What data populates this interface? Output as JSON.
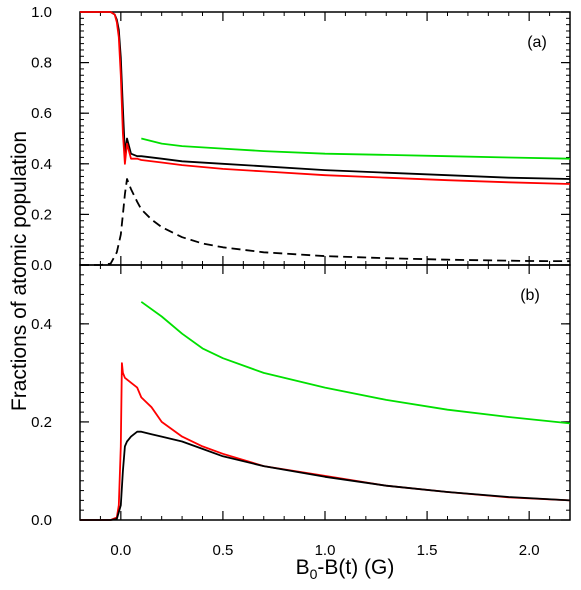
{
  "chart_data": [
    {
      "type": "line",
      "panel_label": "(a)",
      "xlim": [
        -0.2,
        2.2
      ],
      "ylim": [
        0.0,
        1.0
      ],
      "x_ticks": [
        0.0,
        0.5,
        1.0,
        1.5,
        2.0
      ],
      "y_ticks": [
        0.0,
        0.2,
        0.4,
        0.6,
        0.8,
        1.0
      ],
      "y_tick_labels": [
        "0.0",
        "0.2",
        "0.4",
        "0.6",
        "0.8",
        "1.0"
      ],
      "grid": false,
      "series": [
        {
          "color": "#000000",
          "style": "solid",
          "x": [
            -0.2,
            -0.05,
            -0.03,
            -0.02,
            -0.01,
            0.0,
            0.01,
            0.02,
            0.03,
            0.05,
            0.08,
            0.1,
            0.2,
            0.3,
            0.5,
            0.7,
            1.0,
            1.3,
            1.6,
            1.9,
            2.2
          ],
          "y": [
            1.0,
            1.0,
            0.99,
            0.97,
            0.93,
            0.82,
            0.62,
            0.44,
            0.5,
            0.44,
            0.43,
            0.43,
            0.42,
            0.41,
            0.4,
            0.39,
            0.375,
            0.365,
            0.355,
            0.345,
            0.34
          ]
        },
        {
          "color": "#ff0000",
          "style": "solid",
          "x": [
            -0.2,
            -0.05,
            -0.03,
            -0.02,
            -0.01,
            0.0,
            0.01,
            0.02,
            0.03,
            0.05,
            0.08,
            0.1,
            0.2,
            0.3,
            0.5,
            0.7,
            1.0,
            1.3,
            1.6,
            1.9,
            2.2
          ],
          "y": [
            1.0,
            1.0,
            0.99,
            0.96,
            0.9,
            0.75,
            0.52,
            0.4,
            0.48,
            0.42,
            0.42,
            0.415,
            0.405,
            0.395,
            0.38,
            0.37,
            0.355,
            0.345,
            0.335,
            0.327,
            0.32
          ]
        },
        {
          "color": "#00e000",
          "style": "solid",
          "x": [
            0.1,
            0.2,
            0.3,
            0.5,
            0.7,
            1.0,
            1.3,
            1.6,
            1.9,
            2.2
          ],
          "y": [
            0.5,
            0.48,
            0.47,
            0.46,
            0.45,
            0.44,
            0.435,
            0.43,
            0.425,
            0.42
          ]
        },
        {
          "color": "#000000",
          "style": "dashed",
          "x": [
            -0.2,
            -0.1,
            -0.05,
            -0.02,
            0.0,
            0.01,
            0.02,
            0.03,
            0.05,
            0.08,
            0.1,
            0.15,
            0.2,
            0.3,
            0.4,
            0.5,
            0.7,
            1.0,
            1.3,
            1.6,
            2.0,
            2.2
          ],
          "y": [
            0.0,
            0.0,
            0.005,
            0.05,
            0.12,
            0.2,
            0.28,
            0.34,
            0.3,
            0.25,
            0.22,
            0.18,
            0.15,
            0.11,
            0.085,
            0.07,
            0.05,
            0.035,
            0.027,
            0.021,
            0.016,
            0.015
          ]
        }
      ]
    },
    {
      "type": "line",
      "panel_label": "(b)",
      "xlim": [
        -0.2,
        2.2
      ],
      "ylim": [
        0.0,
        0.52
      ],
      "x_ticks": [
        0.0,
        0.5,
        1.0,
        1.5,
        2.0
      ],
      "x_tick_labels": [
        "0.0",
        "0.5",
        "1.0",
        "1.5",
        "2.0"
      ],
      "y_ticks": [
        0.0,
        0.2,
        0.4
      ],
      "y_tick_labels": [
        "0.0",
        "0.2",
        "0.4"
      ],
      "xlabel": "B0-B(t) (G)",
      "grid": false,
      "series": [
        {
          "color": "#00e000",
          "style": "solid",
          "x": [
            0.1,
            0.2,
            0.3,
            0.4,
            0.5,
            0.7,
            1.0,
            1.3,
            1.6,
            1.9,
            2.2
          ],
          "y": [
            0.445,
            0.415,
            0.38,
            0.35,
            0.33,
            0.3,
            0.27,
            0.245,
            0.225,
            0.21,
            0.197
          ]
        },
        {
          "color": "#ff0000",
          "style": "solid",
          "x": [
            -0.2,
            -0.05,
            -0.02,
            -0.01,
            0.0,
            0.005,
            0.01,
            0.02,
            0.05,
            0.08,
            0.1,
            0.15,
            0.2,
            0.3,
            0.4,
            0.5,
            0.7,
            1.0,
            1.3,
            1.6,
            1.9,
            2.2
          ],
          "y": [
            0.0,
            0.0,
            0.005,
            0.03,
            0.15,
            0.32,
            0.3,
            0.29,
            0.28,
            0.27,
            0.25,
            0.23,
            0.2,
            0.17,
            0.15,
            0.135,
            0.11,
            0.09,
            0.07,
            0.057,
            0.046,
            0.04
          ]
        },
        {
          "color": "#000000",
          "style": "solid",
          "x": [
            -0.2,
            -0.05,
            -0.02,
            0.0,
            0.01,
            0.02,
            0.03,
            0.05,
            0.08,
            0.1,
            0.15,
            0.2,
            0.3,
            0.4,
            0.5,
            0.7,
            1.0,
            1.3,
            1.6,
            1.9,
            2.2
          ],
          "y": [
            0.0,
            0.0,
            0.002,
            0.03,
            0.1,
            0.15,
            0.16,
            0.17,
            0.18,
            0.18,
            0.175,
            0.17,
            0.16,
            0.145,
            0.13,
            0.11,
            0.088,
            0.07,
            0.057,
            0.047,
            0.04
          ]
        }
      ]
    }
  ],
  "shared": {
    "ylabel": "Fractions of atomic population",
    "xlabel_main": "B",
    "xlabel_sub": "0",
    "xlabel_rest": "-B(t) (G)"
  }
}
